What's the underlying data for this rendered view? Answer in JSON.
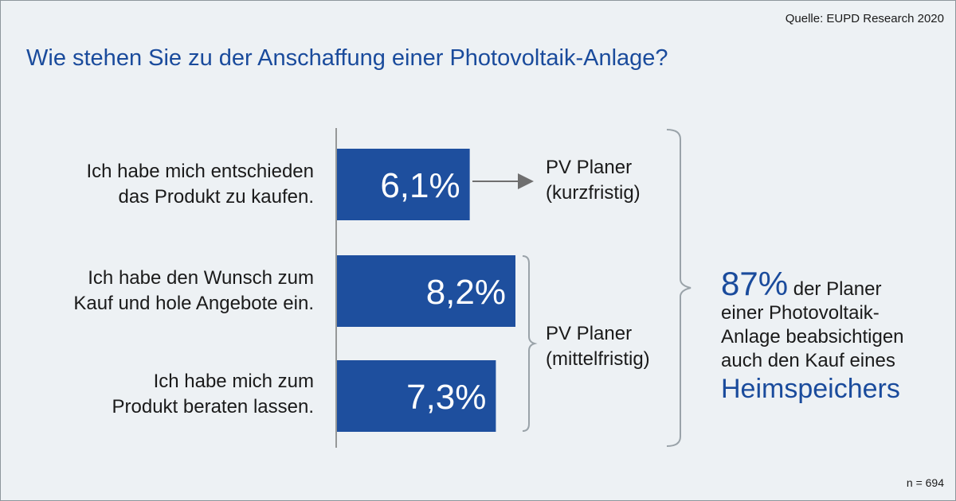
{
  "source": "Quelle: EUPD Research 2020",
  "title": "Wie stehen Sie zu der Anschaffung einer Photovoltaik-Anlage?",
  "footnote": "n = 694",
  "colors": {
    "bar": "#1e4f9e",
    "accent": "#1a4b9c",
    "bracket": "#9aa3a9",
    "arrow": "#6f6f6f"
  },
  "chart_data": {
    "type": "bar",
    "orientation": "horizontal",
    "categories": [
      [
        "Ich habe mich entschieden",
        "das Produkt zu kaufen."
      ],
      [
        "Ich habe den Wunsch zum",
        "Kauf und hole Angebote ein."
      ],
      [
        "Ich habe mich zum",
        "Produkt beraten lassen."
      ]
    ],
    "values": [
      6.1,
      8.2,
      7.3
    ],
    "value_labels": [
      "6,1%",
      "8,2%",
      "7,3%"
    ],
    "unit": "%",
    "groups": [
      {
        "lines": [
          "PV Planer",
          "(kurzfristig)"
        ],
        "covers": [
          0
        ]
      },
      {
        "lines": [
          "PV Planer",
          "(mittelfristig)"
        ],
        "covers": [
          1,
          2
        ]
      }
    ]
  },
  "summary": {
    "percent": "87%",
    "text_lines": [
      "der Planer",
      "einer Photovoltaik-",
      "Anlage beabsichtigen",
      "auch den Kauf eines"
    ],
    "highlight": "Heimspeichers"
  }
}
